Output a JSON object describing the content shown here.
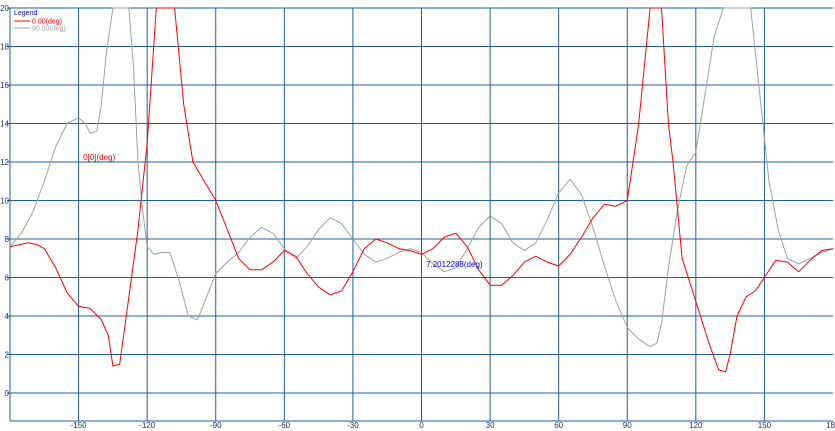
{
  "chart_data": {
    "type": "line",
    "title": "",
    "xlabel": "",
    "ylabel": "",
    "xlim": [
      -180,
      180
    ],
    "ylim": [
      0,
      20
    ],
    "grid": true,
    "xticks": [
      "-150",
      "-120",
      "-90",
      "-60",
      "-30",
      "0",
      "30",
      "60",
      "90",
      "120",
      "150",
      "18"
    ],
    "yticks": [
      "0",
      "2",
      "4",
      "6",
      "8",
      "10",
      "12",
      "14",
      "16",
      "18",
      "20"
    ],
    "legend": {
      "title": "Legend",
      "placement": "top-left",
      "entries": [
        {
          "label": "0.00(deg)",
          "color": "#ff0000"
        },
        {
          "label": "90.00(deg)",
          "color": "#a0a0a0"
        }
      ]
    },
    "annotations": [
      {
        "text": "0[0](deg)",
        "color": "#ff0000",
        "x": -148,
        "y": 12.1
      },
      {
        "text": "7.2012288(deg)",
        "color": "#0000cc",
        "x": 2,
        "y": 6.55
      }
    ],
    "series": [
      {
        "name": "0.00(deg)",
        "color": "#ff0000",
        "x": [
          -180,
          -172,
          -168,
          -165,
          -160,
          -155,
          -150,
          -145,
          -140,
          -137,
          -135,
          -132,
          -128,
          -124,
          -120,
          -116,
          -112,
          -108,
          -104,
          -100,
          -95,
          -90,
          -85,
          -80,
          -75,
          -70,
          -65,
          -60,
          -55,
          -50,
          -45,
          -40,
          -35,
          -30,
          -25,
          -20,
          -15,
          -10,
          -5,
          0,
          5,
          10,
          15,
          20,
          25,
          30,
          35,
          40,
          45,
          50,
          55,
          60,
          65,
          70,
          75,
          80,
          85,
          90,
          95,
          100,
          103,
          105,
          108,
          110,
          114,
          118,
          122,
          126,
          130,
          133,
          135,
          138,
          142,
          146,
          150,
          155,
          160,
          165,
          170,
          175,
          180
        ],
        "y": [
          7.6,
          7.8,
          7.7,
          7.5,
          6.5,
          5.2,
          4.5,
          4.4,
          3.8,
          3.0,
          1.4,
          1.5,
          5.0,
          8.5,
          13.0,
          20.0,
          20.0,
          20.0,
          15.0,
          12.0,
          11.0,
          10.0,
          8.5,
          7.0,
          6.4,
          6.4,
          6.8,
          7.4,
          7.1,
          6.2,
          5.5,
          5.1,
          5.3,
          6.3,
          7.5,
          8.0,
          7.8,
          7.5,
          7.4,
          7.2,
          7.5,
          8.1,
          8.3,
          7.6,
          6.4,
          5.6,
          5.6,
          6.1,
          6.8,
          7.1,
          6.8,
          6.6,
          7.2,
          8.1,
          9.1,
          9.8,
          9.7,
          10.0,
          14.0,
          20.0,
          20.0,
          20.0,
          14.0,
          12.0,
          7.0,
          5.5,
          4.0,
          2.5,
          1.2,
          1.1,
          2.0,
          4.0,
          5.0,
          5.3,
          6.0,
          6.9,
          6.8,
          6.3,
          6.9,
          7.4,
          7.5
        ]
      },
      {
        "name": "90.00(deg)",
        "color": "#a0a0a0",
        "x": [
          -180,
          -175,
          -170,
          -165,
          -160,
          -155,
          -150,
          -147,
          -145,
          -142,
          -140,
          -138,
          -135,
          -132,
          -130,
          -128,
          -126,
          -124,
          -122,
          -120,
          -117,
          -114,
          -110,
          -106,
          -102,
          -98,
          -94,
          -90,
          -85,
          -80,
          -75,
          -70,
          -65,
          -60,
          -55,
          -50,
          -45,
          -40,
          -35,
          -30,
          -25,
          -20,
          -15,
          -10,
          -5,
          0,
          5,
          10,
          15,
          20,
          25,
          30,
          35,
          40,
          45,
          50,
          55,
          60,
          65,
          70,
          75,
          80,
          85,
          90,
          95,
          100,
          103,
          105,
          108,
          112,
          116,
          120,
          124,
          128,
          132,
          136,
          140,
          144,
          148,
          152,
          156,
          160,
          165,
          170,
          175,
          180
        ],
        "y": [
          7.6,
          8.3,
          9.4,
          11.0,
          12.8,
          14.0,
          14.3,
          14.0,
          13.5,
          13.6,
          15.0,
          17.5,
          20.0,
          20.0,
          20.0,
          20.0,
          17.0,
          12.0,
          9.5,
          7.6,
          7.2,
          7.3,
          7.3,
          5.8,
          4.0,
          3.8,
          5.0,
          6.2,
          6.8,
          7.3,
          8.1,
          8.6,
          8.3,
          7.5,
          7.0,
          7.6,
          8.5,
          9.1,
          8.8,
          8.0,
          7.2,
          6.8,
          7.0,
          7.3,
          7.5,
          7.3,
          6.7,
          6.3,
          6.5,
          7.5,
          8.6,
          9.2,
          8.8,
          7.8,
          7.4,
          7.8,
          9.0,
          10.4,
          11.1,
          10.3,
          8.6,
          6.6,
          4.8,
          3.4,
          2.8,
          2.4,
          2.6,
          3.6,
          6.5,
          9.5,
          11.8,
          12.5,
          15.5,
          18.5,
          20.0,
          20.0,
          20.0,
          20.0,
          15.5,
          11.0,
          8.5,
          7.0,
          6.7,
          7.0,
          7.3,
          7.5
        ]
      }
    ]
  }
}
